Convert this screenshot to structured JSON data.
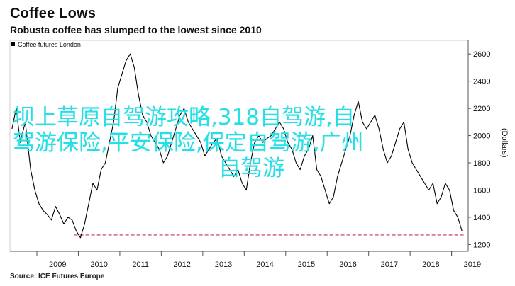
{
  "header": {
    "title": "Coffee Lows",
    "subtitle": "Robusta coffee has slumped to the lowest since 2010"
  },
  "footer": {
    "source": "Source: ICE Futures Europe"
  },
  "overlay": {
    "line1": "坝上草原自驾游攻略,318自驾游,自",
    "line2": "驾游保险,平安保险,保定自驾游,广州",
    "line3": "自驾游",
    "color": "#22e0e8"
  },
  "chart_data": {
    "type": "line",
    "title": "Coffee Lows",
    "subtitle": "Robusta coffee has slumped to the lowest since 2010",
    "ylabel": "(Dollars)",
    "xlabel": "",
    "ylim": [
      1150,
      2700
    ],
    "xlim": [
      2008.35,
      2019.4
    ],
    "yticks": [
      1200,
      1400,
      1600,
      1800,
      2000,
      2200,
      2400,
      2600
    ],
    "xticks": [
      "2009",
      "2010",
      "2011",
      "2012",
      "2013",
      "2014",
      "2015",
      "2016",
      "2017",
      "2018",
      "2019"
    ],
    "legend": "top-left",
    "grid": false,
    "reference_line": {
      "value": 1270,
      "color": "#c0326e",
      "style": "dashed"
    },
    "series": [
      {
        "name": "Coffee futures London",
        "color": "#000000",
        "x": [
          2008.4,
          2008.5,
          2008.6,
          2008.72,
          2008.85,
          2008.95,
          2009.05,
          2009.15,
          2009.25,
          2009.35,
          2009.45,
          2009.55,
          2009.65,
          2009.75,
          2009.85,
          2009.95,
          2010.05,
          2010.15,
          2010.25,
          2010.35,
          2010.45,
          2010.55,
          2010.65,
          2010.75,
          2010.85,
          2010.95,
          2011.05,
          2011.15,
          2011.25,
          2011.35,
          2011.45,
          2011.55,
          2011.65,
          2011.75,
          2011.85,
          2011.95,
          2012.05,
          2012.15,
          2012.25,
          2012.35,
          2012.45,
          2012.55,
          2012.65,
          2012.75,
          2012.85,
          2012.95,
          2013.05,
          2013.15,
          2013.25,
          2013.35,
          2013.45,
          2013.55,
          2013.65,
          2013.75,
          2013.85,
          2013.95,
          2014.05,
          2014.15,
          2014.25,
          2014.35,
          2014.45,
          2014.55,
          2014.65,
          2014.75,
          2014.85,
          2014.95,
          2015.05,
          2015.15,
          2015.25,
          2015.35,
          2015.45,
          2015.55,
          2015.65,
          2015.75,
          2015.85,
          2015.95,
          2016.05,
          2016.15,
          2016.25,
          2016.35,
          2016.45,
          2016.55,
          2016.65,
          2016.75,
          2016.85,
          2016.95,
          2017.05,
          2017.15,
          2017.25,
          2017.35,
          2017.45,
          2017.55,
          2017.65,
          2017.75,
          2017.85,
          2017.95,
          2018.05,
          2018.15,
          2018.25,
          2018.35,
          2018.45,
          2018.55,
          2018.65,
          2018.75,
          2018.85,
          2018.95,
          2019.05,
          2019.15,
          2019.25
        ],
        "values": [
          2050,
          2200,
          1950,
          2100,
          1750,
          1600,
          1500,
          1450,
          1420,
          1380,
          1480,
          1420,
          1350,
          1400,
          1380,
          1300,
          1250,
          1350,
          1500,
          1650,
          1600,
          1750,
          1800,
          1950,
          2100,
          2350,
          2450,
          2550,
          2600,
          2500,
          2300,
          2150,
          2100,
          2000,
          1950,
          1900,
          1800,
          1850,
          1950,
          2050,
          2150,
          2200,
          2100,
          2050,
          2000,
          1950,
          1850,
          1900,
          1950,
          1980,
          1850,
          1800,
          1750,
          1700,
          1750,
          1650,
          1600,
          1800,
          1950,
          2000,
          1950,
          1980,
          2000,
          2050,
          2100,
          2050,
          1950,
          1900,
          1800,
          1750,
          1850,
          1900,
          2000,
          1750,
          1700,
          1600,
          1500,
          1550,
          1700,
          1800,
          1900,
          2000,
          2150,
          2250,
          2100,
          2050,
          2100,
          2150,
          2050,
          1900,
          1800,
          1850,
          1950,
          2050,
          2100,
          1900,
          1800,
          1750,
          1700,
          1650,
          1600,
          1650,
          1500,
          1550,
          1650,
          1600,
          1450,
          1400,
          1300
        ]
      }
    ]
  }
}
